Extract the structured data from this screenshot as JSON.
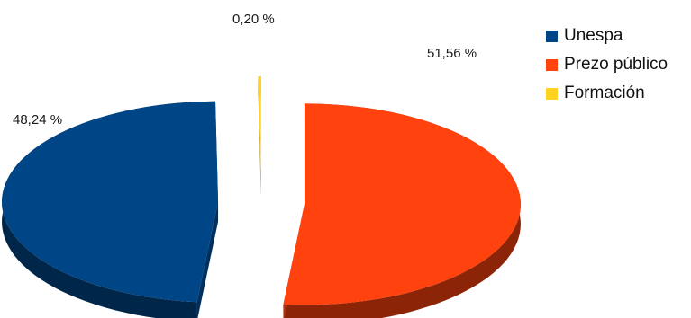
{
  "chart_data": {
    "type": "pie",
    "style": "3d-exploded",
    "categories": [
      "Unespa",
      "Prezo público",
      "Formación"
    ],
    "values": [
      48.24,
      51.56,
      0.2
    ],
    "value_labels": [
      "48,24 %",
      "51,56 %",
      "0,20 %"
    ],
    "colors": [
      "#004586",
      "#ff420e",
      "#ffd320"
    ],
    "legend_position": "top-right"
  },
  "legend": {
    "items": [
      {
        "label": "Unespa",
        "color": "#004586"
      },
      {
        "label": "Prezo público",
        "color": "#ff420e"
      },
      {
        "label": "Formación",
        "color": "#ffd320"
      }
    ]
  }
}
